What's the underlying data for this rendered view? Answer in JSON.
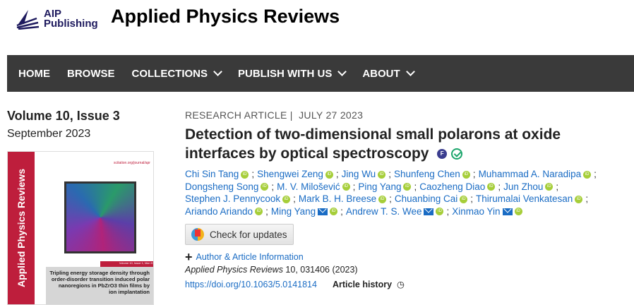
{
  "header": {
    "logo_text_1": "AIP",
    "logo_text_2": "Publishing",
    "journal_title": "Applied Physics Reviews"
  },
  "nav": [
    {
      "label": "HOME",
      "dropdown": false
    },
    {
      "label": "BROWSE",
      "dropdown": false
    },
    {
      "label": "COLLECTIONS",
      "dropdown": true
    },
    {
      "label": "PUBLISH WITH US",
      "dropdown": true
    },
    {
      "label": "ABOUT",
      "dropdown": true
    }
  ],
  "issue": {
    "volume": "Volume 10, Issue 3",
    "date": "September 2023"
  },
  "cover": {
    "spine": "Applied Physics Reviews",
    "url": "scitation.org/journal/apr",
    "band": "Volume 10, Issue 1, Mar 2023",
    "title": "Tripling energy storage density through order-disorder transition induced polar nanoregions in PbZrO3 thin films by ion implantation"
  },
  "article": {
    "type": "RESEARCH ARTICLE",
    "sep": "|",
    "date": "JULY 27 2023",
    "title": "Detection of two-dimensional small polarons at oxide interfaces by optical spectroscopy",
    "badge_f": "F",
    "author_lines": [
      [
        {
          "name": "Chi Sin Tang"
        },
        {
          "name": "Shengwei Zeng"
        },
        {
          "name": "Jing Wu"
        },
        {
          "name": "Shunfeng Chen"
        },
        {
          "name": "Muhammad A. Naradipa"
        }
      ],
      [
        {
          "name": "Dongsheng Song"
        },
        {
          "name": "M. V. Milošević"
        },
        {
          "name": "Ping Yang"
        },
        {
          "name": "Caozheng Diao"
        },
        {
          "name": "Jun Zhou"
        }
      ],
      [
        {
          "name": "Stephen J. Pennycook"
        },
        {
          "name": "Mark B. H. Breese"
        },
        {
          "name": "Chuanbing Cai"
        },
        {
          "name": "Thirumalai Venkatesan"
        }
      ],
      [
        {
          "name": "Ariando Ariando"
        },
        {
          "name": "Ming Yang",
          "email": true
        },
        {
          "name": "Andrew T. S. Wee",
          "email": true
        },
        {
          "name": "Xinmao Yin",
          "email": true
        }
      ]
    ],
    "check_updates": "Check for updates",
    "author_info": "Author & Article Information",
    "journal_italic": "Applied Physics Reviews",
    "citation": " 10, 031406 (2023)",
    "doi": "https://doi.org/10.1063/5.0141814",
    "history": "Article history"
  },
  "colors": {
    "nav_bg": "#3a3a3a",
    "link": "#1a6cc4",
    "cover_red": "#be1e3c",
    "orcid": "#a6ce39"
  }
}
